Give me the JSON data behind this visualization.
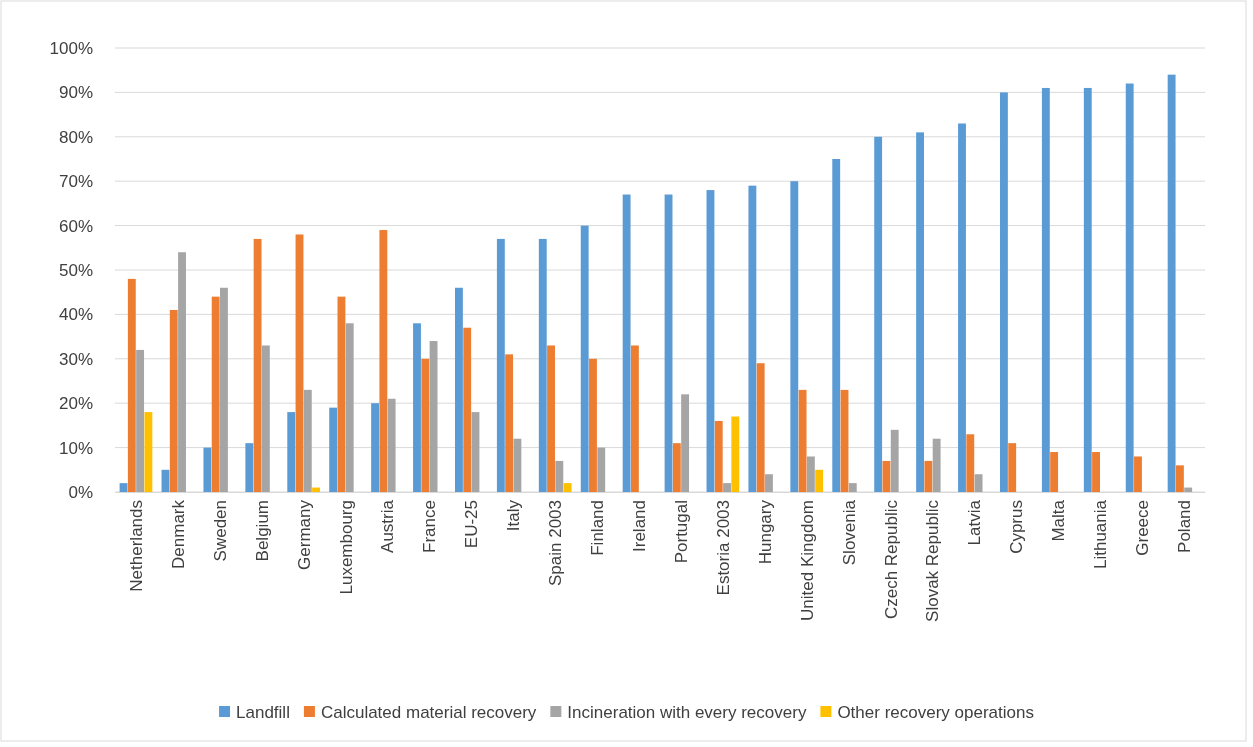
{
  "chart_data": {
    "type": "bar",
    "categories": [
      "Netherlands",
      "Denmark",
      "Sweden",
      "Belgium",
      "Germany",
      "Luxembourg",
      "Austria",
      "France",
      "EU-25",
      "Italy",
      "Spain 2003",
      "Finland",
      "Ireland",
      "Portugal",
      "Estoria 2003",
      "Hungary",
      "United Kingdom",
      "Slovenia",
      "Czech Republic",
      "Slovak Republic",
      "Latvia",
      "Cyprus",
      "Malta",
      "Lithuania",
      "Greece",
      "Poland"
    ],
    "series": [
      {
        "name": "Landfill",
        "color": "#5b9bd5",
        "values": [
          2,
          5,
          10,
          11,
          18,
          19,
          20,
          38,
          46,
          57,
          57,
          60,
          67,
          67,
          68,
          69,
          70,
          75,
          80,
          81,
          83,
          90,
          91,
          91,
          92,
          94
        ]
      },
      {
        "name": "Calculated material recovery",
        "color": "#ed7d31",
        "values": [
          48,
          41,
          44,
          57,
          58,
          44,
          59,
          30,
          37,
          31,
          33,
          30,
          33,
          11,
          16,
          29,
          23,
          23,
          7,
          7,
          13,
          11,
          9,
          9,
          8,
          6
        ]
      },
      {
        "name": "Incineration with every recovery",
        "color": "#a5a5a5",
        "values": [
          32,
          54,
          46,
          33,
          23,
          38,
          21,
          34,
          18,
          12,
          7,
          10,
          0,
          22,
          2,
          4,
          8,
          2,
          14,
          12,
          4,
          0,
          0,
          0,
          0,
          1
        ]
      },
      {
        "name": "Other recovery operations",
        "color": "#ffc000",
        "values": [
          18,
          0,
          0,
          0,
          1,
          0,
          0,
          0,
          0,
          0,
          2,
          0,
          0,
          0,
          17,
          0,
          5,
          0,
          0,
          0,
          0,
          0,
          0,
          0,
          0,
          0
        ]
      }
    ],
    "ylim": [
      0,
      100
    ],
    "yticks": [
      {
        "value": 0,
        "label": "0%"
      },
      {
        "value": 10,
        "label": "10%"
      },
      {
        "value": 20,
        "label": "20%"
      },
      {
        "value": 30,
        "label": "30%"
      },
      {
        "value": 40,
        "label": "40%"
      },
      {
        "value": 50,
        "label": "50%"
      },
      {
        "value": 60,
        "label": "60%"
      },
      {
        "value": 70,
        "label": "70%"
      },
      {
        "value": 80,
        "label": "80%"
      },
      {
        "value": 90,
        "label": "90%"
      },
      {
        "value": 100,
        "label": "100%"
      }
    ],
    "grid": "y",
    "legend": "bottom"
  }
}
